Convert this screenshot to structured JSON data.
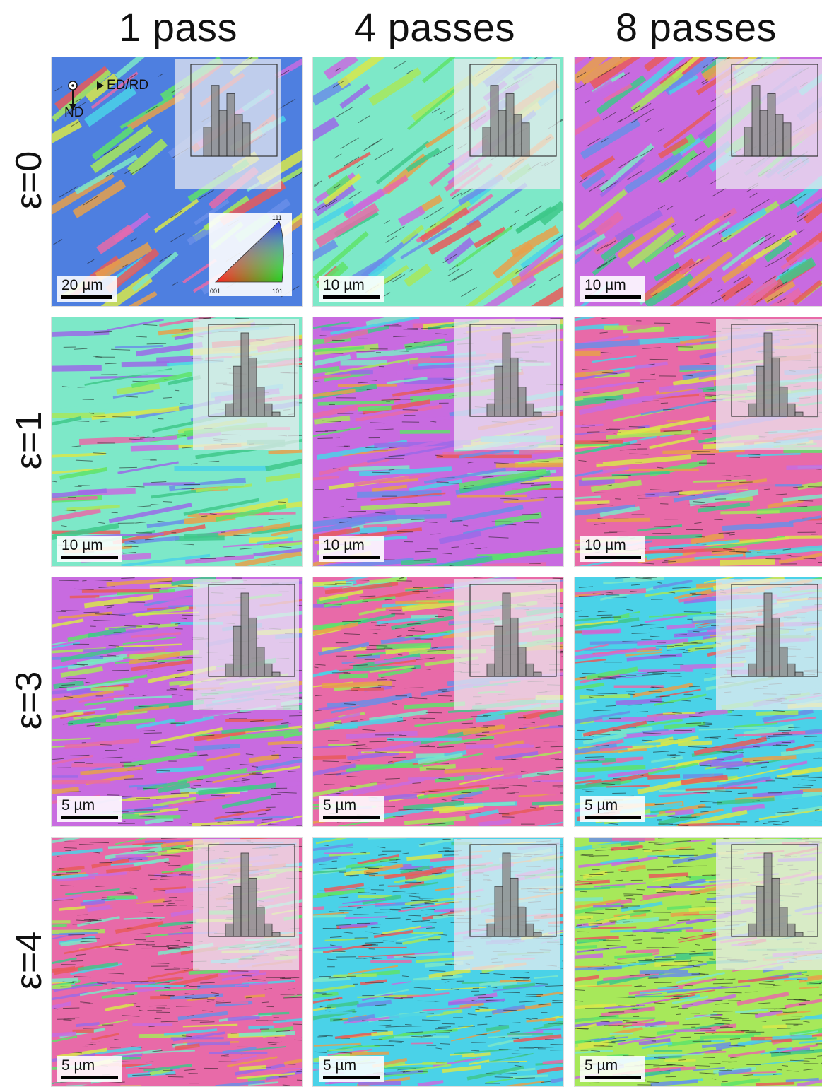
{
  "columns": [
    "1 pass",
    "4 passes",
    "8 passes"
  ],
  "rows": [
    "ε=0",
    "ε=1",
    "ε=3",
    "ε=4"
  ],
  "scale_bars": [
    [
      "20 µm",
      "10 µm",
      "10 µm"
    ],
    [
      "10 µm",
      "10 µm",
      "10 µm"
    ],
    [
      "5 µm",
      "5 µm",
      "5 µm"
    ],
    [
      "5 µm",
      "5 µm",
      "5 µm"
    ]
  ],
  "orientation_axes": {
    "rd_label": "ED/RD",
    "nd_label": "ND"
  },
  "ipf_legend": {
    "corner_001": "001",
    "corner_101": "101",
    "corner_111": "111"
  },
  "colors": {
    "grain_palette": [
      "#5ee36a",
      "#7de8c8",
      "#c86be0",
      "#e86aa8",
      "#4ad2e8",
      "#a7e85a",
      "#e8a04a",
      "#6a8ee8",
      "#e85a5a",
      "#d8e84a",
      "#9a6ae8",
      "#3ec88a"
    ],
    "boundary": "#1a1a1a",
    "inset_bars": "#8a8a8a"
  }
}
